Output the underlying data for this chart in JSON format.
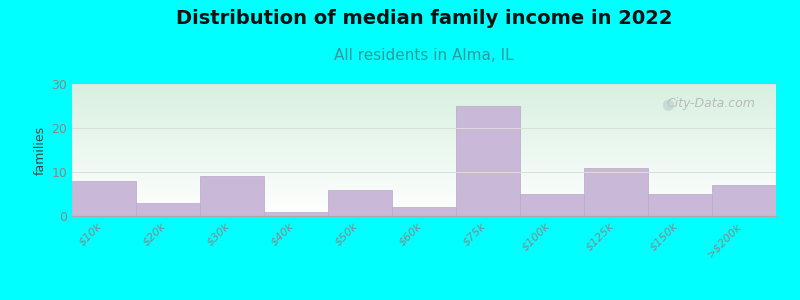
{
  "title": "Distribution of median family income in 2022",
  "subtitle": "All residents in Alma, IL",
  "ylabel": "families",
  "categories": [
    "$10k",
    "$20k",
    "$30k",
    "$40k",
    "$50k",
    "$60k",
    "$75k",
    "$100k",
    "$125k",
    "$150k",
    ">$200k"
  ],
  "values": [
    8,
    3,
    9,
    1,
    6,
    2,
    25,
    5,
    11,
    5,
    7
  ],
  "bar_color": "#c9b8d8",
  "bar_edge_color": "#b8a8cc",
  "background_color": "#00FFFF",
  "plot_bg_topleft": "#d8f0e0",
  "plot_bg_topright": "#e8f4f0",
  "plot_bg_bottom": "#ffffff",
  "title_fontsize": 14,
  "subtitle_fontsize": 11,
  "subtitle_color": "#339999",
  "ylabel_color": "#444444",
  "tick_color": "#888888",
  "yticks": [
    0,
    10,
    20,
    30
  ],
  "ylim": [
    0,
    30
  ],
  "watermark_text": "City-Data.com",
  "watermark_color": "#aaaaaa",
  "grid_color": "#dddddd"
}
